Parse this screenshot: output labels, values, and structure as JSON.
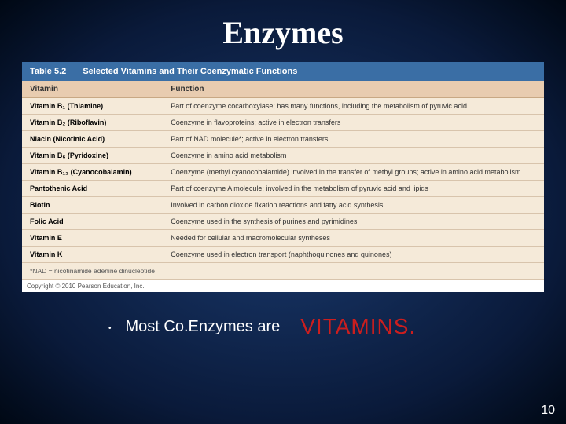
{
  "slide": {
    "title": "Enzymes",
    "pageNumber": "10",
    "bullet": {
      "lead": "Most Co.Enzymes are",
      "emph": "VITAMINS."
    }
  },
  "table": {
    "number": "Table 5.2",
    "title": "Selected Vitamins and Their Coenzymatic Functions",
    "columns": [
      "Vitamin",
      "Function"
    ],
    "rows": [
      {
        "v": "Vitamin B₁ (Thiamine)",
        "f": "Part of coenzyme cocarboxylase; has many functions, including the metabolism of pyruvic acid"
      },
      {
        "v": "Vitamin B₂ (Riboflavin)",
        "f": "Coenzyme in flavoproteins; active in electron transfers"
      },
      {
        "v": "Niacin (Nicotinic Acid)",
        "f": "Part of NAD molecule*; active in electron transfers"
      },
      {
        "v": "Vitamin B₆ (Pyridoxine)",
        "f": "Coenzyme in amino acid metabolism"
      },
      {
        "v": "Vitamin B₁₂ (Cyanocobalamin)",
        "f": "Coenzyme (methyl cyanocobalamide) involved in the transfer of methyl groups; active in amino acid metabolism"
      },
      {
        "v": "Pantothenic Acid",
        "f": "Part of coenzyme A molecule; involved in the metabolism of pyruvic acid and lipids"
      },
      {
        "v": "Biotin",
        "f": "Involved in carbon dioxide fixation reactions and fatty acid synthesis"
      },
      {
        "v": "Folic Acid",
        "f": "Coenzyme used in the synthesis of purines and pyrimidines"
      },
      {
        "v": "Vitamin E",
        "f": "Needed for cellular and macromolecular syntheses"
      },
      {
        "v": "Vitamin K",
        "f": "Coenzyme used in electron transport (naphthoquinones and quinones)"
      }
    ],
    "footnote": "*NAD = nicotinamide adenine dinucleotide",
    "copyright": "Copyright © 2010 Pearson Education, Inc."
  },
  "style": {
    "bg_gradient_inner": "#1a3a6e",
    "bg_gradient_outer": "#000814",
    "header_bg": "#3a6ea5",
    "row_bg": "#f5ead9",
    "th_bg": "#e8ccb0",
    "emph_color": "#cc1e1e",
    "title_color": "#ffffff"
  }
}
